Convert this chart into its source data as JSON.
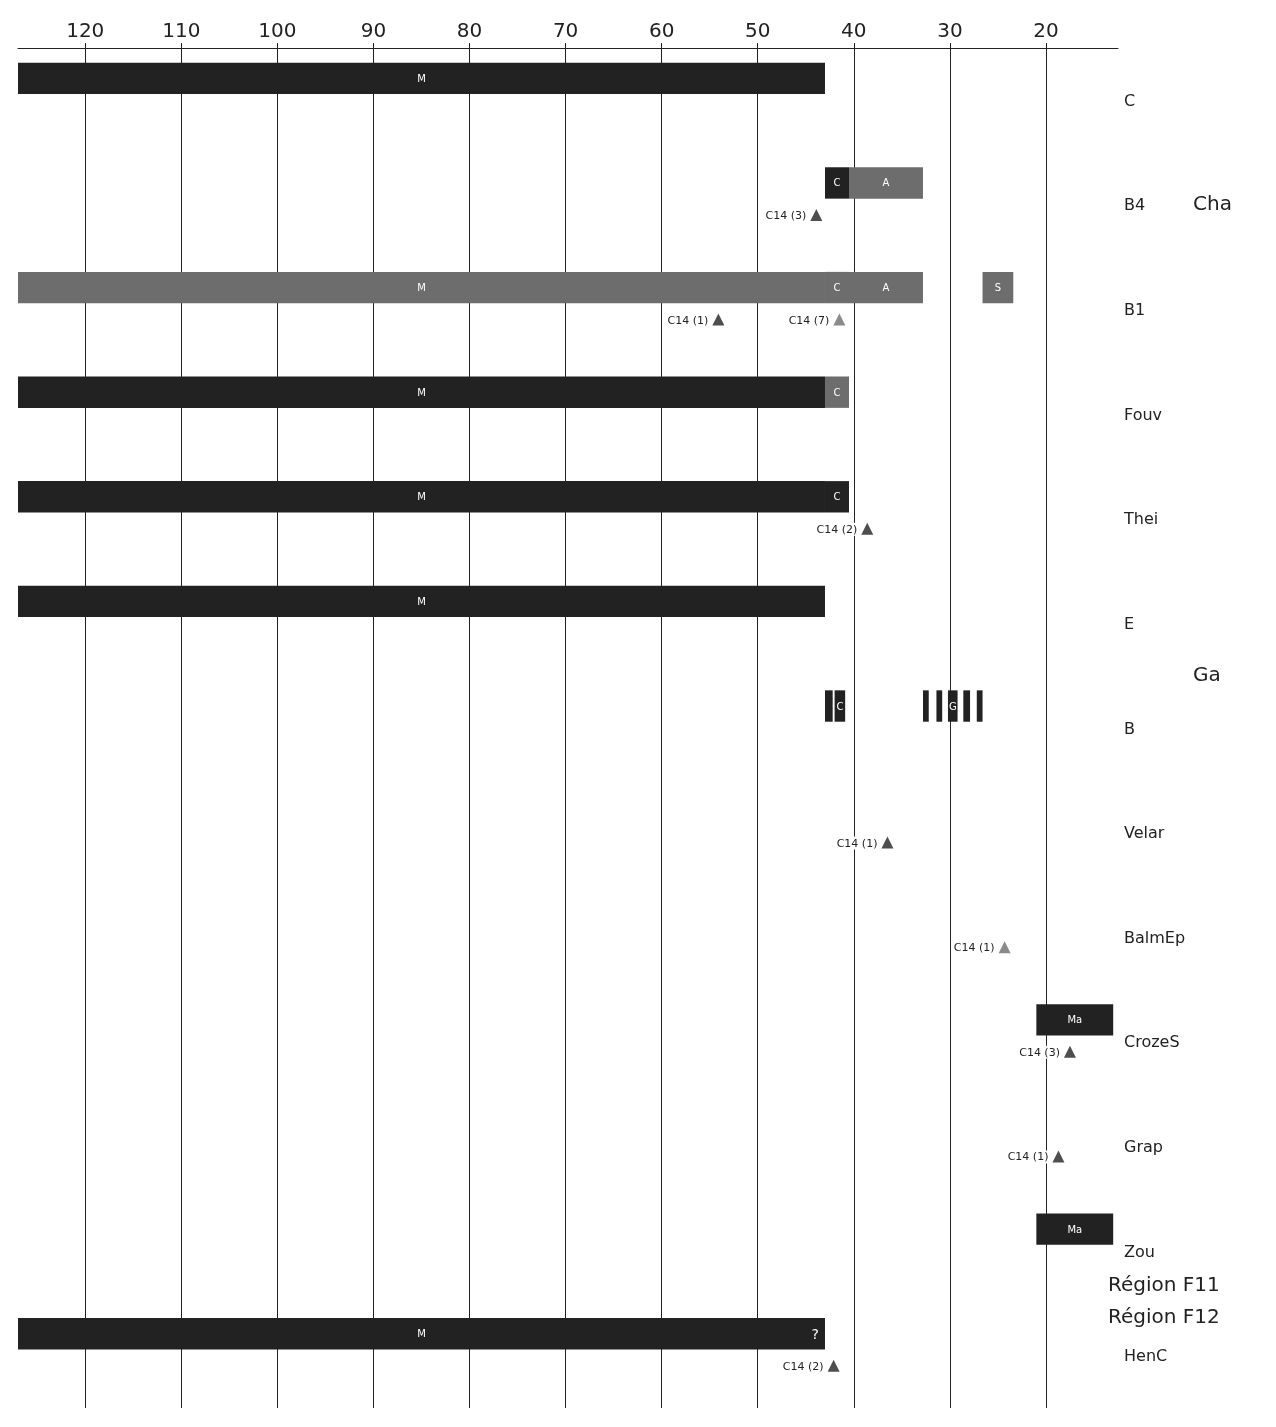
{
  "chart_data": {
    "type": "bar",
    "orientation": "horizontal",
    "categories": [
      "C",
      "B4",
      "B1",
      "Fouv",
      "Thei",
      "E",
      "B",
      "Velar",
      "BalmEp",
      "CrozeS",
      "Grap",
      "Zou",
      "HenC"
    ],
    "xlim": [
      127,
      12.5
    ],
    "xticks": [
      120,
      110,
      100,
      90,
      80,
      70,
      60,
      50,
      40,
      30,
      20
    ],
    "grid": "x",
    "series": [
      {
        "base": [
          43,
          null,
          43,
          43,
          43,
          43,
          null,
          null,
          null,
          null,
          null,
          null,
          43
        ],
        "values": [
          84,
          null,
          84,
          84,
          84,
          84,
          null,
          null,
          null,
          null,
          null,
          null,
          84
        ],
        "value_labels": [
          "M",
          null,
          "M",
          "M",
          "M",
          "M",
          null,
          null,
          null,
          null,
          null,
          null,
          "M"
        ],
        "colors": [
          "#222222",
          null,
          "#6d6d6d",
          "#222222",
          "#222222",
          "#222222",
          null,
          null,
          null,
          null,
          null,
          null,
          "#222222"
        ]
      },
      {
        "base": [
          null,
          40.5,
          40.5,
          40.5,
          40.5,
          null,
          40.9,
          null,
          null,
          null,
          null,
          null,
          null
        ],
        "values": [
          null,
          2.5,
          2.5,
          2.5,
          2.5,
          null,
          1.1,
          null,
          null,
          null,
          null,
          null,
          null
        ],
        "value_labels": [
          null,
          "C",
          "C",
          "C",
          "C",
          null,
          "C",
          null,
          null,
          null,
          null,
          null,
          null
        ],
        "colors": [
          null,
          "#222222",
          "#6d6d6d",
          "#6d6d6d",
          "#222222",
          null,
          "#222222",
          null,
          null,
          null,
          null,
          null,
          null
        ]
      },
      {
        "base": [
          null,
          32.8,
          32.8,
          null,
          null,
          null,
          null,
          null,
          null,
          null,
          null,
          null,
          null
        ],
        "values": [
          null,
          7.7,
          7.7,
          null,
          null,
          null,
          null,
          null,
          null,
          null,
          null,
          null,
          null
        ],
        "value_labels": [
          null,
          "A",
          "A",
          null,
          null,
          null,
          null,
          null,
          null,
          null,
          null,
          null,
          null
        ],
        "colors": [
          null,
          "#6d6d6d",
          "#6d6d6d",
          null,
          null,
          null,
          null,
          null,
          null,
          null,
          null,
          null,
          null
        ]
      },
      {
        "base": [
          null,
          null,
          23.4,
          null,
          null,
          null,
          29.2,
          null,
          null,
          null,
          null,
          null,
          null
        ],
        "values": [
          null,
          null,
          3.2,
          null,
          null,
          null,
          1.0,
          null,
          null,
          null,
          null,
          null,
          null
        ],
        "value_labels": [
          null,
          null,
          "S",
          null,
          null,
          null,
          "G",
          null,
          null,
          null,
          null,
          null,
          null
        ],
        "colors": [
          null,
          null,
          "#6d6d6d",
          null,
          null,
          null,
          "#222222",
          null,
          null,
          null,
          null,
          null,
          null
        ]
      },
      {
        "base": [
          null,
          null,
          null,
          null,
          null,
          null,
          null,
          null,
          null,
          13,
          null,
          13,
          null
        ],
        "values": [
          null,
          null,
          null,
          null,
          null,
          null,
          null,
          null,
          null,
          8,
          null,
          8,
          null
        ],
        "value_labels": [
          null,
          null,
          null,
          null,
          null,
          null,
          null,
          null,
          null,
          "Ma",
          null,
          "Ma",
          null
        ],
        "color": "#222222"
      },
      {
        "base": [
          null,
          null,
          null,
          null,
          null,
          null,
          42.2,
          null,
          null,
          null,
          null,
          null,
          null
        ],
        "values": [
          null,
          null,
          null,
          null,
          null,
          null,
          0.8,
          null,
          null,
          null,
          null,
          null,
          null
        ],
        "color": "#222222"
      },
      {
        "base": [
          null,
          null,
          null,
          null,
          null,
          null,
          32.2,
          null,
          null,
          null,
          null,
          null,
          null
        ],
        "values": [
          null,
          null,
          null,
          null,
          null,
          null,
          0.6,
          null,
          null,
          null,
          null,
          null,
          null
        ],
        "color": "#222222"
      },
      {
        "base": [
          null,
          null,
          null,
          null,
          null,
          null,
          30.8,
          null,
          null,
          null,
          null,
          null,
          null
        ],
        "values": [
          null,
          null,
          null,
          null,
          null,
          null,
          0.6,
          null,
          null,
          null,
          null,
          null,
          null
        ],
        "color": "#222222"
      },
      {
        "base": [
          null,
          null,
          null,
          null,
          null,
          null,
          27.9,
          null,
          null,
          null,
          null,
          null,
          null
        ],
        "values": [
          null,
          null,
          null,
          null,
          null,
          null,
          0.7,
          null,
          null,
          null,
          null,
          null,
          null
        ],
        "color": "#222222"
      },
      {
        "base": [
          null,
          null,
          null,
          null,
          null,
          null,
          26.6,
          null,
          null,
          null,
          null,
          null,
          null
        ],
        "values": [
          null,
          null,
          null,
          null,
          null,
          null,
          0.6,
          null,
          null,
          null,
          null,
          null,
          null
        ],
        "color": "#222222"
      },
      {
        "type": "scatter",
        "marker": "triangle",
        "values": [
          null,
          43.9,
          54.1,
          null,
          38.6,
          null,
          null,
          36.5,
          24.3,
          17.5,
          18.7,
          null,
          42.1
        ],
        "colors": [
          null,
          "#222222",
          "#222222",
          null,
          "#222222",
          null,
          null,
          "#222222",
          "#6d6d6d",
          "#222222",
          "#222222",
          null,
          "#222222"
        ]
      },
      {
        "type": "scatter",
        "marker": "triangle",
        "values": [
          null,
          null,
          41.5,
          null,
          null,
          null,
          null,
          null,
          null,
          null,
          null,
          null,
          null
        ],
        "color": "#6d6d6d"
      }
    ],
    "annotations": [
      {
        "text": "C14 (3)",
        "x": 43.9,
        "y": "B4"
      },
      {
        "text": "C14 (1)",
        "x": 54.1,
        "y": "B1"
      },
      {
        "text": "C14 (7)",
        "x": 41.5,
        "y": "B1"
      },
      {
        "text": "C14 (2)",
        "x": 38.6,
        "y": "Thei"
      },
      {
        "text": "C14 (1)",
        "x": 36.5,
        "y": "Velar"
      },
      {
        "text": "C14 (1)",
        "x": 24.3,
        "y": "BalmEp"
      },
      {
        "text": "C14 (3)",
        "x": 17.5,
        "y": "CrozeS"
      },
      {
        "text": "C14 (1)",
        "x": 18.7,
        "y": "Grap"
      },
      {
        "text": "C14 (2)",
        "x": 42.1,
        "y": "HenC"
      },
      "Cha",
      "Ga",
      "?",
      "Région F11",
      "Région F12"
    ]
  }
}
